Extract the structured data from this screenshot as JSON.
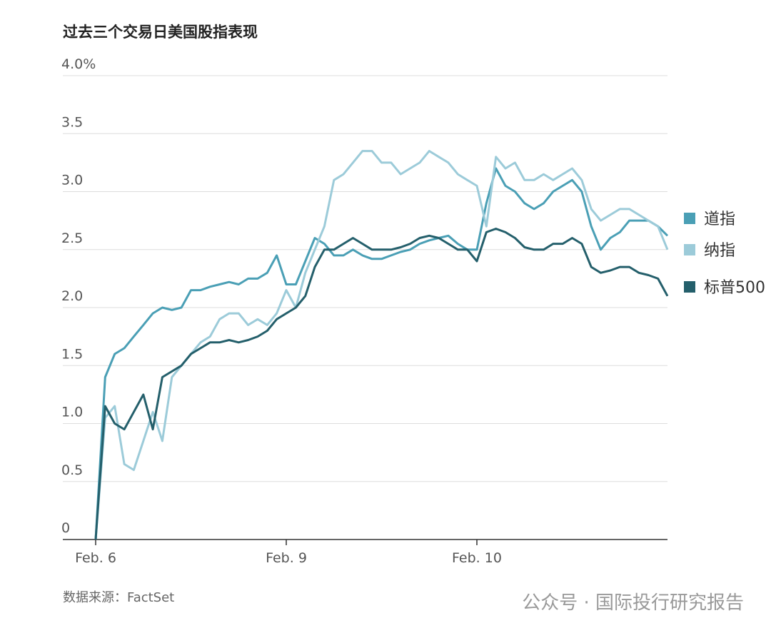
{
  "chart_data": {
    "type": "line",
    "title": "过去三个交易日美国股指表现",
    "source": "数据来源：FactSet",
    "watermark": "公众号 · 国际投行研究报告",
    "x": [
      0,
      0.05,
      0.1,
      0.15,
      0.2,
      0.25,
      0.3,
      0.35,
      0.4,
      0.45,
      0.5,
      0.55,
      0.6,
      0.65,
      0.7,
      0.75,
      0.8,
      0.85,
      0.9,
      0.95,
      1,
      1.05,
      1.1,
      1.15,
      1.2,
      1.25,
      1.3,
      1.35,
      1.4,
      1.45,
      1.5,
      1.55,
      1.6,
      1.65,
      1.7,
      1.75,
      1.8,
      1.85,
      1.9,
      1.95,
      2,
      2.05,
      2.1,
      2.15,
      2.2,
      2.25,
      2.3,
      2.35,
      2.4,
      2.45,
      2.5,
      2.55,
      2.6,
      2.65,
      2.7,
      2.75,
      2.8,
      2.85,
      2.9,
      2.95,
      3
    ],
    "xlim": [
      0,
      3
    ],
    "xticks": [
      {
        "value": 0,
        "label": "Feb. 6"
      },
      {
        "value": 1,
        "label": "Feb. 9"
      },
      {
        "value": 2,
        "label": "Feb. 10"
      }
    ],
    "ylim": [
      0,
      4
    ],
    "yticks": [
      0,
      0.5,
      {
        "value": 1,
        "label": "1.0"
      },
      1.5,
      {
        "value": 2,
        "label": "2.0"
      },
      2.5,
      {
        "value": 3,
        "label": "3.0"
      },
      3.5,
      {
        "value": 4,
        "label": "4.0%"
      }
    ],
    "grid": true,
    "legend": "right",
    "series": [
      {
        "name": "道指",
        "color": "#4a9fb5",
        "values": [
          0,
          1.4,
          1.6,
          1.65,
          1.75,
          1.85,
          1.95,
          2.0,
          1.98,
          2.0,
          2.15,
          2.15,
          2.18,
          2.2,
          2.22,
          2.2,
          2.25,
          2.25,
          2.3,
          2.45,
          2.2,
          2.2,
          2.4,
          2.6,
          2.55,
          2.45,
          2.45,
          2.5,
          2.45,
          2.42,
          2.42,
          2.45,
          2.48,
          2.5,
          2.55,
          2.58,
          2.6,
          2.62,
          2.55,
          2.5,
          2.5,
          2.9,
          3.2,
          3.05,
          3.0,
          2.9,
          2.85,
          2.9,
          3.0,
          3.05,
          3.1,
          3.0,
          2.7,
          2.5,
          2.6,
          2.65,
          2.75,
          2.75,
          2.75,
          2.7,
          2.62
        ]
      },
      {
        "name": "纳指",
        "color": "#9ccbd9",
        "values": [
          0,
          1.05,
          1.15,
          0.65,
          0.6,
          0.85,
          1.1,
          0.85,
          1.4,
          1.5,
          1.6,
          1.7,
          1.75,
          1.9,
          1.95,
          1.95,
          1.85,
          1.9,
          1.85,
          1.95,
          2.15,
          2.0,
          2.3,
          2.5,
          2.7,
          3.1,
          3.15,
          3.25,
          3.35,
          3.35,
          3.25,
          3.25,
          3.15,
          3.2,
          3.25,
          3.35,
          3.3,
          3.25,
          3.15,
          3.1,
          3.05,
          2.7,
          3.3,
          3.2,
          3.25,
          3.1,
          3.1,
          3.15,
          3.1,
          3.15,
          3.2,
          3.1,
          2.85,
          2.75,
          2.8,
          2.85,
          2.85,
          2.8,
          2.75,
          2.7,
          2.5
        ]
      },
      {
        "name": "标普500",
        "color": "#245f6b",
        "values": [
          0,
          1.15,
          1.0,
          0.95,
          1.1,
          1.25,
          0.95,
          1.4,
          1.45,
          1.5,
          1.6,
          1.65,
          1.7,
          1.7,
          1.72,
          1.7,
          1.72,
          1.75,
          1.8,
          1.9,
          1.95,
          2.0,
          2.1,
          2.35,
          2.5,
          2.5,
          2.55,
          2.6,
          2.55,
          2.5,
          2.5,
          2.5,
          2.52,
          2.55,
          2.6,
          2.62,
          2.6,
          2.55,
          2.5,
          2.5,
          2.4,
          2.65,
          2.68,
          2.65,
          2.6,
          2.52,
          2.5,
          2.5,
          2.55,
          2.55,
          2.6,
          2.55,
          2.35,
          2.3,
          2.32,
          2.35,
          2.35,
          2.3,
          2.28,
          2.25,
          2.1
        ]
      }
    ]
  }
}
